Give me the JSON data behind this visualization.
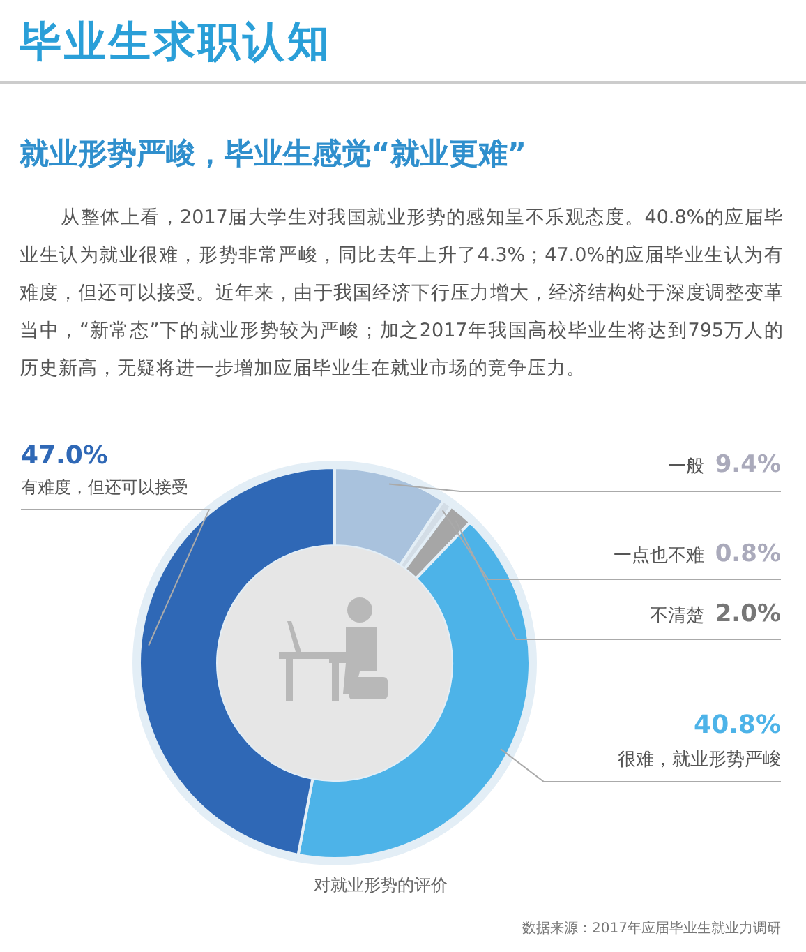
{
  "chart_data": {
    "type": "donut",
    "title": "毕业生求职认知",
    "subtitle": "就业形势严峻，毕业生感觉“就业更难”",
    "annotations": [
      "从整体上看，2017届大学生对我国就业形势的感知呈不乐观态度。40.8%的应届毕业生认为就业很难，形势非常严峻，同比去年上升了4.3%；47.0%的应届毕业生认为有难度，但还可以接受。近年来，由于我国经济下行压力增大，经济结构处于深度调整变革当中，“新常态”下的就业形势较为严峻；加之2017年我国高校毕业生将达到795万人的历史新高，无疑将进一步增加应届毕业生在就业市场的竞争压力。",
      "对就业形势的评价",
      "数据来源：2017年应届毕业生就业力调研"
    ],
    "categories": [
      "一般",
      "一点也不难",
      "不清楚",
      "很难，就业形势严峻",
      "有难度，但还可以接受"
    ],
    "values": [
      9.4,
      0.8,
      2.0,
      40.8,
      47.0
    ],
    "value_labels": [
      "9.4%",
      "0.8%",
      "2.0%",
      "40.8%",
      "47.0%"
    ],
    "colors": [
      "#a9c2dd",
      "#d3dde6",
      "#a6a6a6",
      "#4db3e8",
      "#2f68b6"
    ]
  }
}
